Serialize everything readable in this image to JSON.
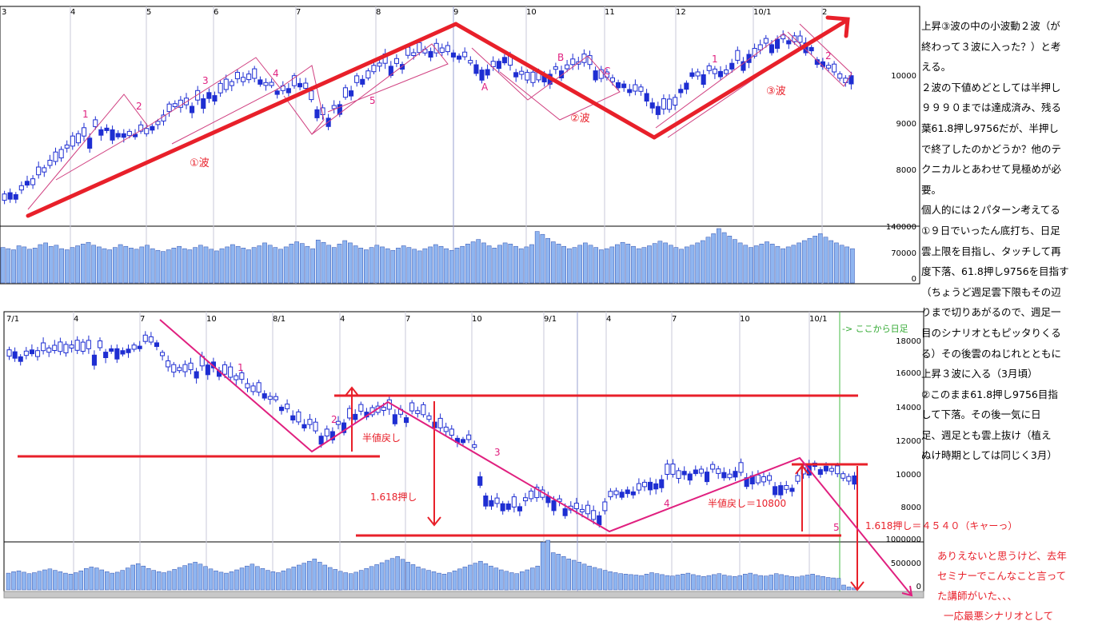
{
  "chart_data": [
    {
      "type": "candlestick",
      "x_ticks": [
        "3",
        "4",
        "5",
        "6",
        "7",
        "8",
        "9",
        "10",
        "11",
        "12",
        "10/1",
        "2"
      ],
      "price_axis": {
        "labels": [
          "10000",
          "9000",
          "8000"
        ],
        "ticks": [
          10000,
          9000,
          8000
        ]
      },
      "volume_axis": {
        "labels": [
          "140000",
          "70000",
          "0"
        ],
        "ticks": [
          140000,
          70000,
          0
        ]
      },
      "wave_labels": [
        "1",
        "2",
        "3",
        "4",
        "5",
        "A",
        "B",
        "C",
        "①波",
        "②波",
        "③波",
        "1",
        "2"
      ],
      "volume_bars": [
        62,
        60,
        58,
        65,
        63,
        59,
        61,
        67,
        70,
        64,
        66,
        60,
        58,
        62,
        65,
        68,
        71,
        66,
        63,
        60,
        58,
        62,
        67,
        64,
        61,
        59,
        63,
        66,
        60,
        57,
        55,
        58,
        61,
        64,
        60,
        58,
        62,
        66,
        63,
        59,
        56,
        60,
        63,
        67,
        64,
        61,
        58,
        62,
        65,
        70,
        66,
        62,
        59,
        63,
        68,
        72,
        69,
        64,
        60,
        75,
        71,
        66,
        62,
        68,
        74,
        70,
        65,
        61,
        58,
        62,
        66,
        63,
        60,
        57,
        61,
        65,
        62,
        59,
        56,
        60,
        63,
        67,
        64,
        60,
        57,
        61,
        64,
        68,
        72,
        76,
        70,
        65,
        61,
        66,
        70,
        68,
        64,
        60,
        63,
        67,
        90,
        85,
        78,
        72,
        68,
        64,
        60,
        62,
        66,
        70,
        66,
        62,
        58,
        60,
        63,
        67,
        71,
        68,
        64,
        60,
        62,
        65,
        69,
        73,
        70,
        66,
        62,
        59,
        63,
        66,
        70,
        74,
        80,
        86,
        95,
        88,
        82,
        76,
        70,
        66,
        62,
        65,
        68,
        72,
        68,
        64,
        60,
        63,
        66,
        70,
        74,
        78,
        82,
        86,
        80,
        74,
        70,
        66,
        63,
        60
      ]
    },
    {
      "type": "candlestick",
      "x_ticks": [
        "7/1",
        "4",
        "7",
        "10",
        "8/1",
        "4",
        "7",
        "10",
        "9/1",
        "4",
        "7",
        "10",
        "10/1"
      ],
      "price_axis": {
        "labels": [
          "18000",
          "16000",
          "14000",
          "12000",
          "10000",
          "8000"
        ],
        "ticks": [
          18000,
          16000,
          14000,
          12000,
          10000,
          8000
        ]
      },
      "volume_axis": {
        "labels": [
          "1000000",
          "500000",
          "0"
        ],
        "ticks": [
          1000000,
          500000,
          0
        ]
      },
      "wave_labels": [
        "1",
        "2",
        "3",
        "4",
        "5"
      ],
      "volume_bars": [
        35,
        38,
        40,
        37,
        34,
        36,
        39,
        42,
        44,
        41,
        38,
        35,
        33,
        36,
        40,
        45,
        48,
        46,
        42,
        38,
        35,
        37,
        41,
        46,
        52,
        55,
        50,
        45,
        41,
        38,
        36,
        39,
        43,
        47,
        51,
        55,
        58,
        54,
        49,
        44,
        40,
        37,
        35,
        38,
        42,
        46,
        50,
        54,
        49,
        45,
        41,
        38,
        36,
        40,
        44,
        48,
        52,
        56,
        60,
        65,
        58,
        52,
        47,
        43,
        39,
        36,
        34,
        37,
        41,
        45,
        49,
        53,
        57,
        62,
        66,
        70,
        64,
        58,
        53,
        48,
        44,
        41,
        38,
        35,
        33,
        36,
        40,
        44,
        48,
        52,
        56,
        60,
        55,
        50,
        46,
        42,
        39,
        36,
        34,
        38,
        42,
        46,
        50,
        100,
        104,
        78,
        75,
        70,
        65,
        62,
        58,
        54,
        50,
        47,
        44,
        41,
        38,
        36,
        34,
        33,
        32,
        31,
        30,
        33,
        36,
        34,
        32,
        30,
        29,
        31,
        33,
        35,
        32,
        30,
        28,
        30,
        32,
        34,
        31,
        29,
        28,
        30,
        33,
        35,
        32,
        30,
        29,
        31,
        34,
        32,
        30,
        28,
        27,
        29,
        31,
        33,
        30,
        28,
        26,
        25,
        24,
        10,
        6,
        4
      ]
    }
  ],
  "top_chart_labels": {
    "w1": "1",
    "w2": "2",
    "w3": "3",
    "w4": "4",
    "w5": "5",
    "wa": "A",
    "wb": "B",
    "wc": "C",
    "big1": "①波",
    "big2": "②波",
    "big3": "③波",
    "s1": "1",
    "s2": "2"
  },
  "bottom_chart_labels": {
    "b1": "1",
    "b2": "2",
    "b3": "3",
    "b4": "4",
    "b5": "5",
    "half_retrace": "半値戻し",
    "ext_1618": "1.618押し",
    "half_retrace_value": "半値戻し＝10800",
    "ext_target": "1.618押し＝４５４０（キャーっ）",
    "from_here_daily": "-> ここから日足"
  },
  "commentary_right": [
    "上昇③波の中の小波動２波（が",
    "終わって３波に入った？）と考",
    "える。",
    "２波の下値めどとしては半押し",
    "９９９０までは達成済み、残る",
    "葉61.8押し9756だが、半押し",
    "で終了したのかどうか？他のテ",
    "クニカルとあわせて見極めが必",
    "要。",
    "個人的には２パターン考えてる",
    "①９日でいったん底打ち、日足",
    "雲上限を目指し、タッチして再",
    "度下落、61.8押し9756を目指す",
    "（ちょうど週足雲下限もその辺",
    "りまで切りあがるので、週足一",
    "目のシナリオともピッタりくる",
    "る）その後雲のねじれとともに",
    "上昇３波に入る（3月頃）",
    "②このまま61.8押し9756目指",
    "して下落。その後一気に日",
    "足、週足とも雲上抜け（植え",
    "ぬけ時期としては同じく3月）"
  ],
  "commentary_bottom": [
    "ありえないと思うけど、去年",
    "セミナーでこんなこと言って",
    "た講師がいた、、、",
    "一応最悪シナリオとして"
  ],
  "colors": {
    "candle_blue": "#1e2ed2",
    "volume_fill": "#8fb5f0",
    "trend_red": "#e8202a",
    "wave_magenta": "#e0207f",
    "channel_pink": "#d04080",
    "grid": "#c8c8d8",
    "daily_marker": "#44bb44"
  }
}
